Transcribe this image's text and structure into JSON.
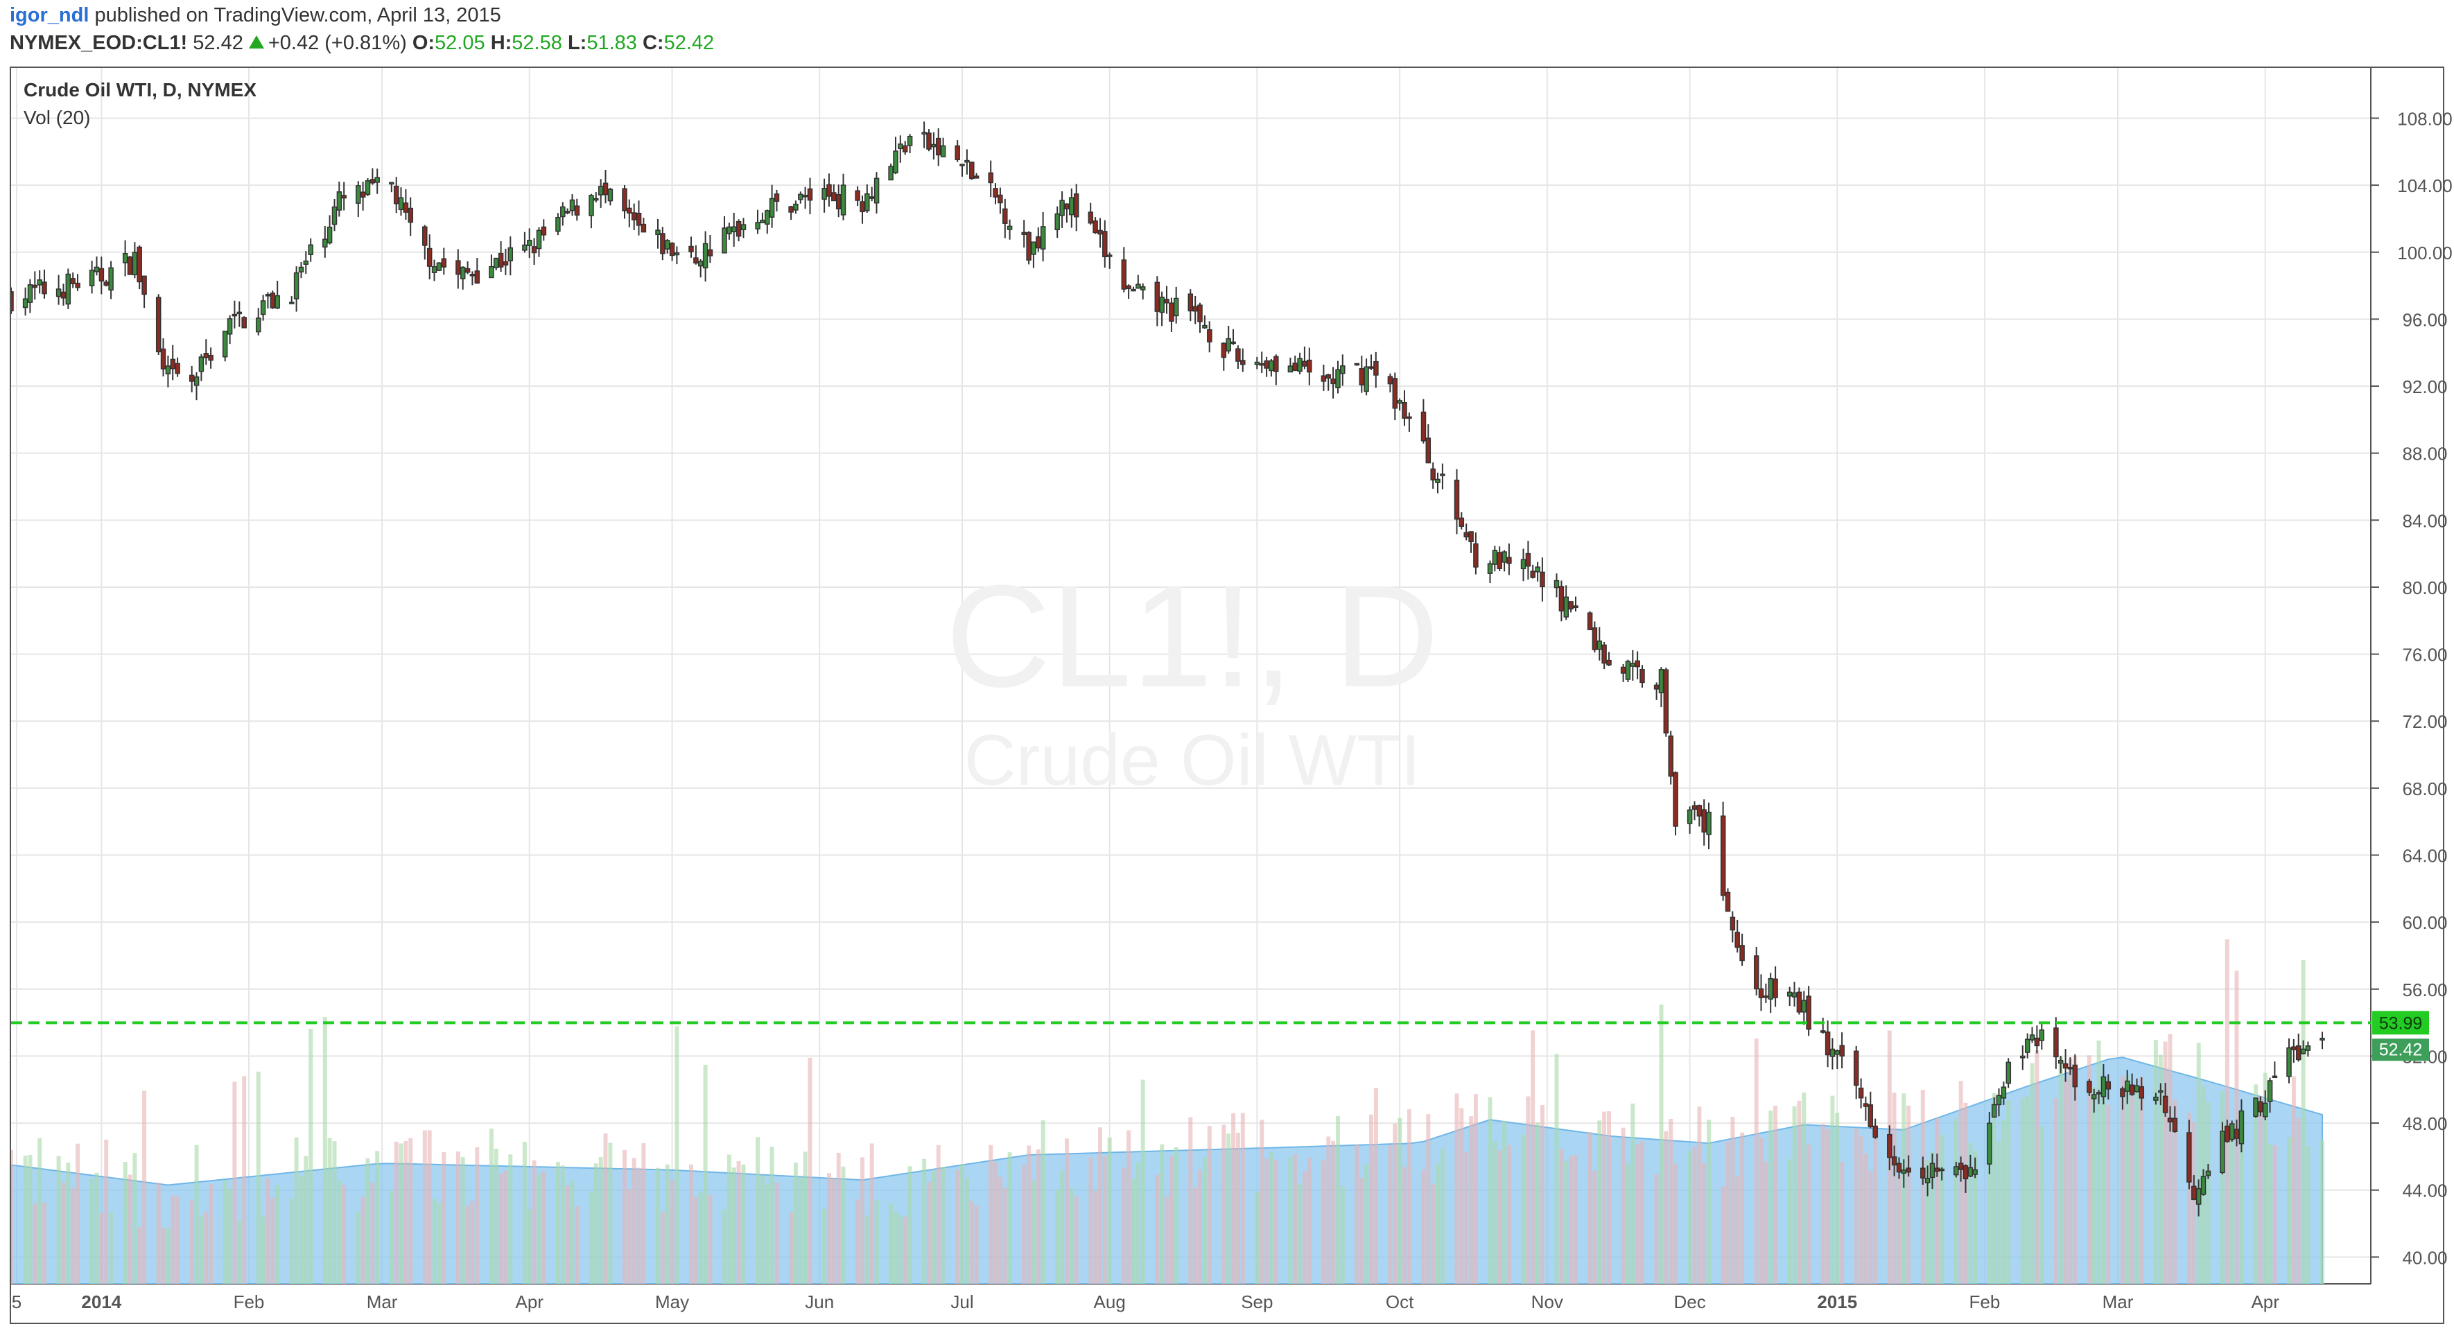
{
  "header": {
    "user": "igor_ndl",
    "published": "published on TradingView.com, April 13, 2015",
    "symbol": "NYMEX_EOD:CL1!",
    "last": "52.42",
    "change": "+0.42 (+0.81%)",
    "o_label": "O:",
    "o_val": "52.05",
    "h_label": "H:",
    "h_val": "52.58",
    "l_label": "L:",
    "l_val": "51.83",
    "c_label": "C:",
    "c_val": "52.42"
  },
  "legend": {
    "title": "Crude Oil WTI, D, NYMEX",
    "volume": "Vol (20)"
  },
  "watermark": {
    "ticker": "CL1!, D",
    "name": "Crude Oil WTI"
  },
  "colors": {
    "up": "#3b8a3e",
    "down": "#8b2b22",
    "hline": "#22cc22",
    "grid": "#e6e6e6",
    "vol_ma": "#86c5f0",
    "vol_up": "#a8d8a8",
    "vol_down": "#e8b4b4"
  },
  "chart_data": {
    "type": "candlestick",
    "x": [
      "2013-12-13",
      "2015-04-13"
    ],
    "x_tick_labels": [
      "5",
      "2014",
      "Feb",
      "Mar",
      "Apr",
      "May",
      "Jun",
      "Jul",
      "Aug",
      "Sep",
      "Oct",
      "Nov",
      "Dec",
      "2015",
      "Feb",
      "Mar",
      "Apr"
    ],
    "y_tick_labels": [
      "108.00",
      "104.00",
      "100.00",
      "96.00",
      "92.00",
      "88.00",
      "84.00",
      "80.00",
      "76.00",
      "72.00",
      "68.00",
      "64.00",
      "60.00",
      "56.00",
      "52.00",
      "48.00",
      "44.00",
      "40.00"
    ],
    "ylim": [
      38.4,
      111.0
    ],
    "hline": {
      "value": 53.99,
      "label": "53.99"
    },
    "last_price": {
      "value": 52.42,
      "label": "52.42"
    },
    "close_path": [
      {
        "x": "2013-12-13",
        "y": 97.3
      },
      {
        "x": "2013-12-31",
        "y": 98.4
      },
      {
        "x": "2014-01-08",
        "y": 99.6
      },
      {
        "x": "2014-01-14",
        "y": 92.6
      },
      {
        "x": "2014-01-20",
        "y": 92.2
      },
      {
        "x": "2014-01-27",
        "y": 95.5
      },
      {
        "x": "2014-02-10",
        "y": 97.8
      },
      {
        "x": "2014-02-20",
        "y": 103.0
      },
      {
        "x": "2014-03-03",
        "y": 104.0
      },
      {
        "x": "2014-03-08",
        "y": 100.5
      },
      {
        "x": "2014-03-17",
        "y": 98.5
      },
      {
        "x": "2014-04-01",
        "y": 100.2
      },
      {
        "x": "2014-04-15",
        "y": 103.8
      },
      {
        "x": "2014-04-25",
        "y": 101.0
      },
      {
        "x": "2014-05-05",
        "y": 99.5
      },
      {
        "x": "2014-05-20",
        "y": 102.5
      },
      {
        "x": "2014-06-01",
        "y": 103.5
      },
      {
        "x": "2014-06-10",
        "y": 103.2
      },
      {
        "x": "2014-06-20",
        "y": 106.9
      },
      {
        "x": "2014-06-30",
        "y": 105.5
      },
      {
        "x": "2014-07-10",
        "y": 102.5
      },
      {
        "x": "2014-07-15",
        "y": 100.0
      },
      {
        "x": "2014-07-22",
        "y": 103.5
      },
      {
        "x": "2014-07-31",
        "y": 100.0
      },
      {
        "x": "2014-08-05",
        "y": 97.5
      },
      {
        "x": "2014-08-20",
        "y": 96.0
      },
      {
        "x": "2014-08-28",
        "y": 93.5
      },
      {
        "x": "2014-09-05",
        "y": 93.5
      },
      {
        "x": "2014-09-15",
        "y": 92.3
      },
      {
        "x": "2014-09-25",
        "y": 93.0
      },
      {
        "x": "2014-10-01",
        "y": 91.0
      },
      {
        "x": "2014-10-10",
        "y": 86.0
      },
      {
        "x": "2014-10-17",
        "y": 82.0
      },
      {
        "x": "2014-10-31",
        "y": 80.5
      },
      {
        "x": "2014-11-07",
        "y": 78.5
      },
      {
        "x": "2014-11-14",
        "y": 75.5
      },
      {
        "x": "2014-11-25",
        "y": 74.5
      },
      {
        "x": "2014-11-28",
        "y": 66.5
      },
      {
        "x": "2014-12-05",
        "y": 65.8
      },
      {
        "x": "2014-12-12",
        "y": 57.5
      },
      {
        "x": "2014-12-16",
        "y": 56.0
      },
      {
        "x": "2014-12-23",
        "y": 55.5
      },
      {
        "x": "2015-01-05",
        "y": 50.0
      },
      {
        "x": "2015-01-13",
        "y": 45.9
      },
      {
        "x": "2015-01-29",
        "y": 44.8
      },
      {
        "x": "2015-02-03",
        "y": 48.5
      },
      {
        "x": "2015-02-06",
        "y": 52.0
      },
      {
        "x": "2015-02-13",
        "y": 52.8
      },
      {
        "x": "2015-02-20",
        "y": 50.5
      },
      {
        "x": "2015-03-02",
        "y": 49.8
      },
      {
        "x": "2015-03-10",
        "y": 49.8
      },
      {
        "x": "2015-03-17",
        "y": 44.0
      },
      {
        "x": "2015-03-20",
        "y": 45.9
      },
      {
        "x": "2015-04-01",
        "y": 49.6
      },
      {
        "x": "2015-04-06",
        "y": 52.2
      },
      {
        "x": "2015-04-13",
        "y": 52.42
      }
    ],
    "volume_ma_path": [
      {
        "x": "2013-12-13",
        "y": 45.5
      },
      {
        "x": "2014-01-15",
        "y": 44.3
      },
      {
        "x": "2014-03-01",
        "y": 45.6
      },
      {
        "x": "2014-05-01",
        "y": 45.2
      },
      {
        "x": "2014-06-10",
        "y": 44.6
      },
      {
        "x": "2014-07-15",
        "y": 46.1
      },
      {
        "x": "2014-09-01",
        "y": 46.5
      },
      {
        "x": "2014-10-05",
        "y": 46.8
      },
      {
        "x": "2014-10-20",
        "y": 48.2
      },
      {
        "x": "2014-11-15",
        "y": 47.2
      },
      {
        "x": "2014-12-05",
        "y": 46.8
      },
      {
        "x": "2014-12-25",
        "y": 47.9
      },
      {
        "x": "2015-01-15",
        "y": 47.6
      },
      {
        "x": "2015-02-10",
        "y": 50.2
      },
      {
        "x": "2015-03-01",
        "y": 52.0
      },
      {
        "x": "2015-03-20",
        "y": 50.5
      },
      {
        "x": "2015-04-13",
        "y": 48.5
      }
    ]
  }
}
